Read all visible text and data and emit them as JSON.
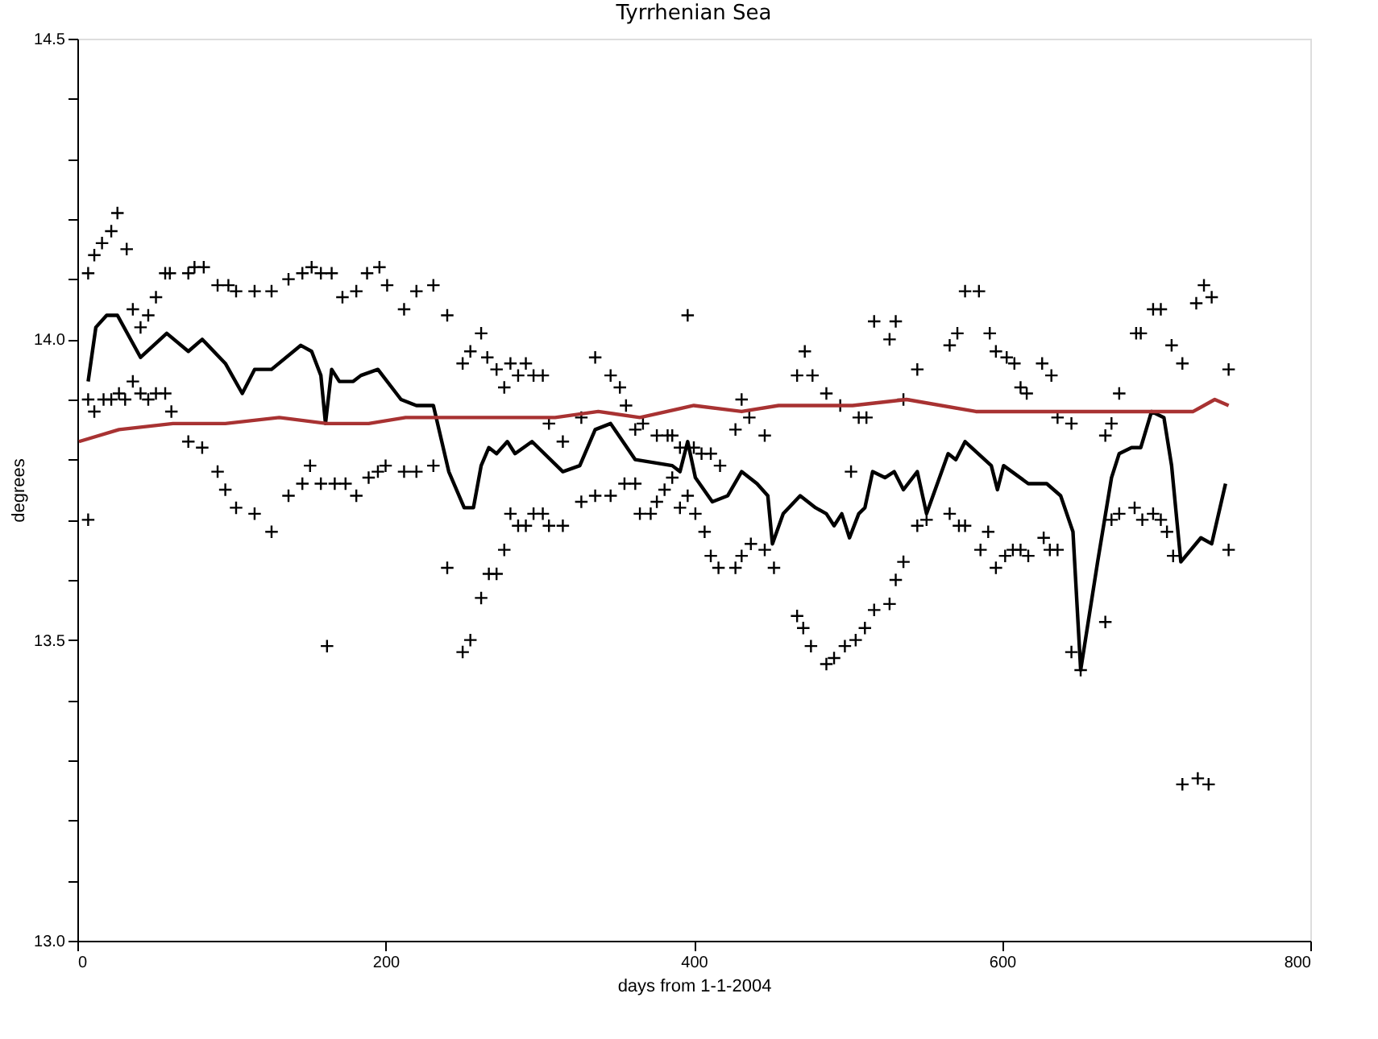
{
  "chart_data": {
    "type": "scatter",
    "title": "Tyrrhenian Sea",
    "xlabel": "days from 1-1-2004",
    "ylabel": "degrees",
    "xlim": [
      0,
      800
    ],
    "xticks": [
      0,
      200,
      400,
      600,
      800
    ],
    "ylim": [
      13.0,
      14.5
    ],
    "yticks": [
      {
        "value": 13.0,
        "label": "13.0"
      },
      {
        "value": 13.1,
        "label": null
      },
      {
        "value": 13.2,
        "label": null
      },
      {
        "value": 13.3,
        "label": null
      },
      {
        "value": 13.4,
        "label": null
      },
      {
        "value": 13.5,
        "label": "13.5"
      },
      {
        "value": 13.6,
        "label": null
      },
      {
        "value": 13.7,
        "label": null
      },
      {
        "value": 13.8,
        "label": null
      },
      {
        "value": 13.9,
        "label": null
      },
      {
        "value": 14.0,
        "label": "14.0"
      },
      {
        "value": 14.1,
        "label": null
      },
      {
        "value": 14.2,
        "label": null
      },
      {
        "value": 14.3,
        "label": null
      },
      {
        "value": 14.4,
        "label": null
      },
      {
        "value": 14.5,
        "label": "14.5"
      }
    ],
    "grid": false,
    "series": [
      {
        "marker": "cross",
        "color": "#000000",
        "x": [
          7,
          11,
          16,
          22,
          26,
          32,
          36,
          41,
          46,
          51,
          57,
          60,
          72,
          76,
          82,
          91,
          98,
          103,
          115,
          126,
          137,
          146,
          152,
          158,
          165,
          172,
          181,
          188,
          196,
          201,
          212,
          220,
          231,
          240,
          250,
          255,
          262,
          266,
          272,
          277,
          281,
          286,
          291,
          296,
          302,
          306,
          315,
          327,
          336,
          346,
          352,
          356,
          362,
          367,
          376,
          383,
          386,
          391,
          396,
          400,
          405,
          411,
          417,
          427,
          431,
          436,
          446,
          467,
          472,
          477,
          486,
          495,
          502,
          507,
          512,
          517,
          527,
          531,
          536,
          545,
          566,
          571,
          576,
          585,
          592,
          596,
          603,
          608,
          612,
          616,
          626,
          632,
          636,
          645,
          667,
          671,
          676,
          687,
          690,
          698,
          703,
          710,
          717,
          726,
          731,
          736,
          747,
          7,
          11,
          17,
          22,
          27,
          31,
          36,
          41,
          46,
          51,
          57,
          61,
          72,
          81,
          91,
          96,
          103,
          115,
          126,
          137,
          146,
          151,
          158,
          167,
          174,
          181,
          189,
          195,
          200,
          212,
          220,
          231,
          7,
          162,
          240,
          250,
          255,
          262,
          267,
          272,
          277,
          281,
          286,
          291,
          296,
          302,
          306,
          315,
          327,
          336,
          346,
          355,
          362,
          365,
          372,
          376,
          381,
          386,
          391,
          396,
          401,
          407,
          411,
          416,
          427,
          431,
          437,
          446,
          452,
          467,
          471,
          476,
          486,
          491,
          498,
          505,
          511,
          517,
          527,
          531,
          536,
          545,
          551,
          566,
          572,
          576,
          586,
          591,
          596,
          602,
          607,
          612,
          617,
          627,
          631,
          636,
          645,
          651,
          667,
          671,
          676,
          686,
          691,
          698,
          703,
          707,
          711,
          717,
          727,
          734,
          747
        ],
        "values": [
          14.11,
          14.14,
          14.16,
          14.18,
          14.21,
          14.15,
          14.05,
          14.02,
          14.04,
          14.07,
          14.11,
          14.11,
          14.11,
          14.12,
          14.12,
          14.09,
          14.09,
          14.08,
          14.08,
          14.08,
          14.1,
          14.11,
          14.12,
          14.11,
          14.11,
          14.07,
          14.08,
          14.11,
          14.12,
          14.09,
          14.05,
          14.08,
          14.09,
          14.04,
          13.96,
          13.98,
          14.01,
          13.97,
          13.95,
          13.92,
          13.96,
          13.94,
          13.96,
          13.94,
          13.94,
          13.86,
          13.83,
          13.87,
          13.97,
          13.94,
          13.92,
          13.89,
          13.85,
          13.86,
          13.84,
          13.84,
          13.84,
          13.82,
          14.04,
          13.82,
          13.81,
          13.81,
          13.79,
          13.85,
          13.9,
          13.87,
          13.84,
          13.94,
          13.98,
          13.94,
          13.91,
          13.89,
          13.78,
          13.87,
          13.87,
          14.03,
          14.0,
          14.03,
          13.9,
          13.95,
          13.99,
          14.01,
          14.08,
          14.08,
          14.01,
          13.98,
          13.97,
          13.96,
          13.92,
          13.91,
          13.96,
          13.94,
          13.87,
          13.86,
          13.84,
          13.86,
          13.91,
          14.01,
          14.01,
          14.05,
          14.05,
          13.99,
          13.96,
          14.06,
          14.09,
          14.07,
          13.95,
          13.9,
          13.88,
          13.9,
          13.9,
          13.91,
          13.9,
          13.93,
          13.91,
          13.9,
          13.91,
          13.91,
          13.88,
          13.83,
          13.82,
          13.78,
          13.75,
          13.72,
          13.71,
          13.68,
          13.74,
          13.76,
          13.79,
          13.76,
          13.76,
          13.76,
          13.74,
          13.77,
          13.78,
          13.79,
          13.78,
          13.78,
          13.79,
          13.7,
          13.49,
          13.62,
          13.48,
          13.5,
          13.57,
          13.61,
          13.61,
          13.65,
          13.71,
          13.69,
          13.69,
          13.71,
          13.71,
          13.69,
          13.69,
          13.73,
          13.74,
          13.74,
          13.76,
          13.76,
          13.71,
          13.71,
          13.73,
          13.75,
          13.77,
          13.72,
          13.74,
          13.71,
          13.68,
          13.64,
          13.62,
          13.62,
          13.64,
          13.66,
          13.65,
          13.62,
          13.54,
          13.52,
          13.49,
          13.46,
          13.47,
          13.49,
          13.5,
          13.52,
          13.55,
          13.56,
          13.6,
          13.63,
          13.69,
          13.7,
          13.71,
          13.69,
          13.69,
          13.65,
          13.68,
          13.62,
          13.64,
          13.65,
          13.65,
          13.64,
          13.67,
          13.65,
          13.65,
          13.48,
          13.45,
          13.53,
          13.7,
          13.71,
          13.72,
          13.7,
          13.71,
          13.7,
          13.68,
          13.64,
          13.26,
          13.27,
          13.26,
          13.65
        ]
      },
      {
        "type": "line",
        "color": "#000000",
        "x": [
          7,
          12,
          19,
          26,
          41,
          58,
          72,
          81,
          96,
          107,
          115,
          126,
          145,
          152,
          158,
          161,
          165,
          170,
          179,
          184,
          195,
          210,
          220,
          231,
          241,
          251,
          257,
          262,
          267,
          272,
          279,
          284,
          295,
          315,
          326,
          336,
          346,
          362,
          386,
          391,
          396,
          401,
          412,
          422,
          431,
          441,
          448,
          451,
          458,
          469,
          479,
          486,
          491,
          496,
          501,
          507,
          511,
          516,
          524,
          530,
          536,
          545,
          551,
          565,
          570,
          576,
          593,
          597,
          601,
          617,
          629,
          638,
          646,
          651,
          662,
          671,
          676,
          684,
          690,
          697,
          705,
          710,
          716,
          729,
          736,
          745
        ],
        "values": [
          13.93,
          14.02,
          14.04,
          14.04,
          13.97,
          14.01,
          13.98,
          14.0,
          13.96,
          13.91,
          13.95,
          13.95,
          13.99,
          13.98,
          13.94,
          13.86,
          13.95,
          13.93,
          13.93,
          13.94,
          13.95,
          13.9,
          13.89,
          13.89,
          13.78,
          13.72,
          13.72,
          13.79,
          13.82,
          13.81,
          13.83,
          13.81,
          13.83,
          13.78,
          13.79,
          13.85,
          13.86,
          13.8,
          13.79,
          13.78,
          13.83,
          13.77,
          13.73,
          13.74,
          13.78,
          13.76,
          13.74,
          13.66,
          13.71,
          13.74,
          13.72,
          13.71,
          13.69,
          13.71,
          13.67,
          13.71,
          13.72,
          13.78,
          13.77,
          13.78,
          13.75,
          13.78,
          13.71,
          13.81,
          13.8,
          13.83,
          13.79,
          13.75,
          13.79,
          13.76,
          13.76,
          13.74,
          13.68,
          13.45,
          13.63,
          13.77,
          13.81,
          13.82,
          13.82,
          13.88,
          13.87,
          13.79,
          13.63,
          13.67,
          13.66,
          13.76
        ]
      },
      {
        "type": "line",
        "color": "#a83232",
        "x": [
          1,
          27,
          62,
          96,
          131,
          162,
          189,
          213,
          234,
          272,
          310,
          338,
          365,
          400,
          431,
          455,
          503,
          538,
          583,
          617,
          652,
          676,
          697,
          724,
          738,
          747
        ],
        "values": [
          13.83,
          13.85,
          13.86,
          13.86,
          13.87,
          13.86,
          13.86,
          13.87,
          13.87,
          13.87,
          13.87,
          13.88,
          13.87,
          13.89,
          13.88,
          13.89,
          13.89,
          13.9,
          13.88,
          13.88,
          13.88,
          13.88,
          13.88,
          13.88,
          13.9,
          13.89
        ]
      }
    ]
  }
}
